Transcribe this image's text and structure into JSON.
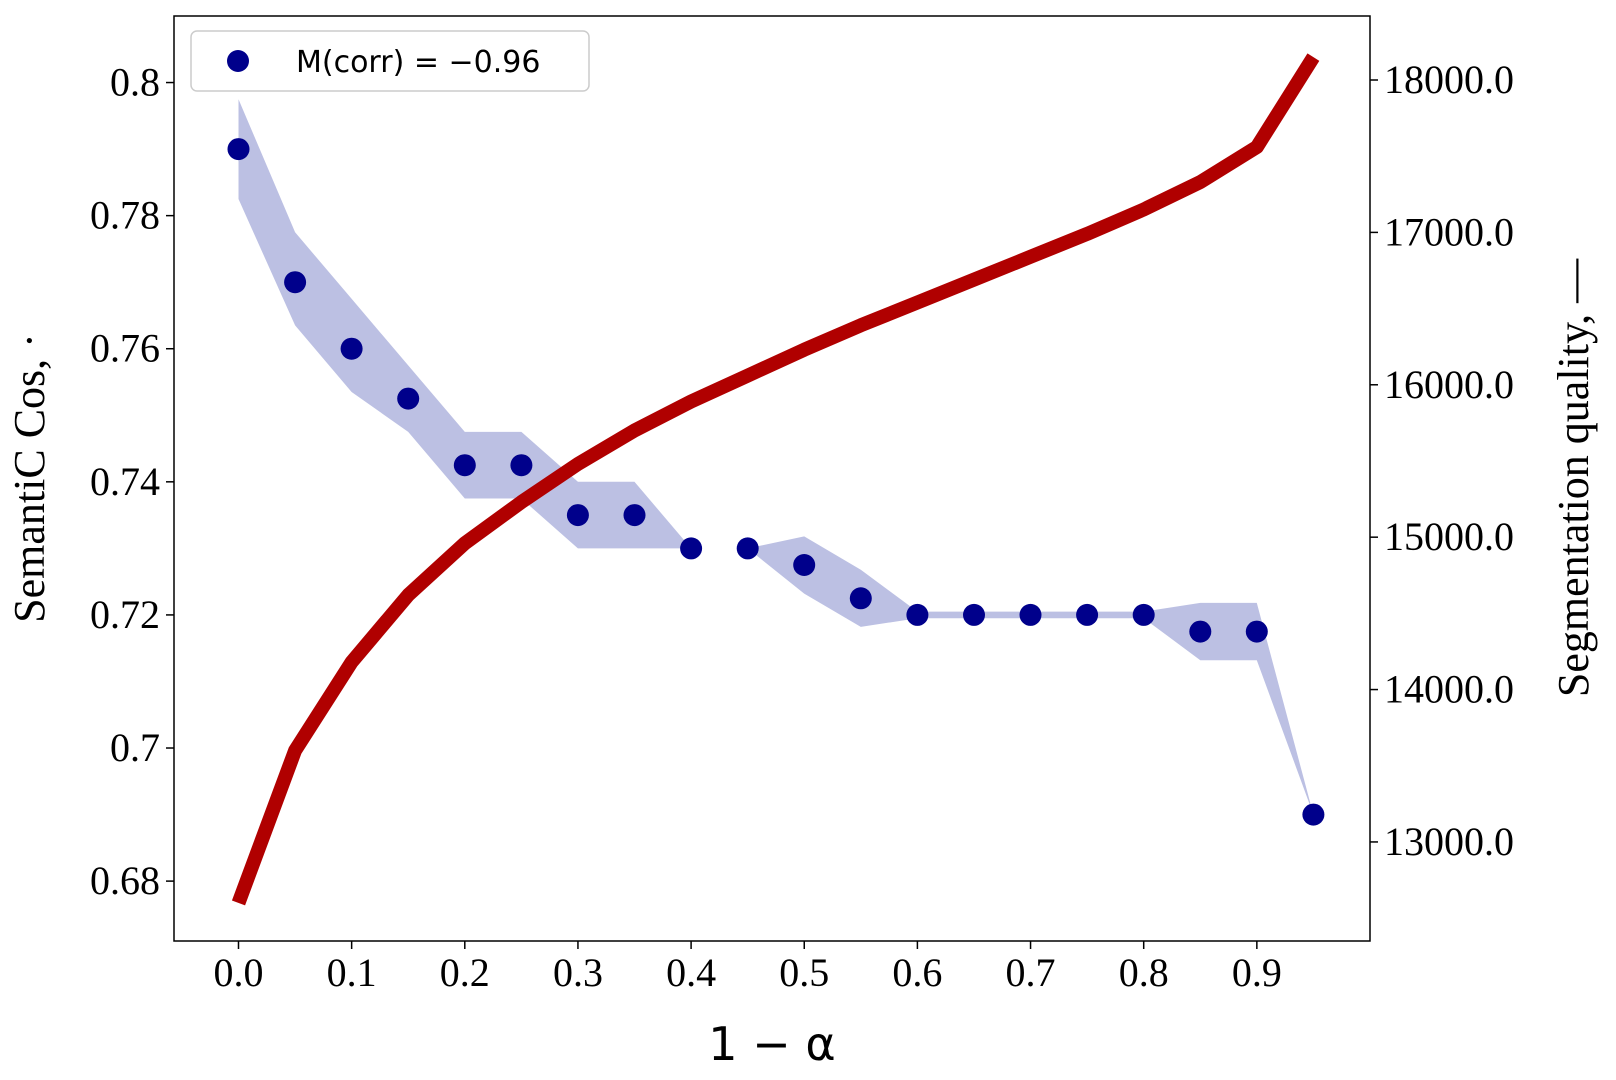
{
  "chart_data": {
    "type": "scatter",
    "xlabel": "1 − α",
    "ylabel_left": "SemantiC Cos, ·",
    "ylabel_right": "Segmentation quality, —",
    "x_ticks": [
      "0.0",
      "0.1",
      "0.2",
      "0.3",
      "0.4",
      "0.5",
      "0.6",
      "0.7",
      "0.8",
      "0.9"
    ],
    "y_left_ticks": [
      "0.68",
      "0.7",
      "0.72",
      "0.74",
      "0.76",
      "0.78",
      "0.8"
    ],
    "y_right_ticks": [
      "13000.0",
      "14000.0",
      "15000.0",
      "16000.0",
      "17000.0",
      "18000.0"
    ],
    "xlim": [
      -0.057,
      1.0
    ],
    "ylim_left": [
      0.671,
      0.81
    ],
    "ylim_right": [
      12350,
      18420
    ],
    "legend": {
      "label": "M(corr) = −0.96",
      "position": "top-left"
    },
    "colors": {
      "points": "#00008b",
      "band": "#bcc0e3",
      "line": "#b00000"
    },
    "series": [
      {
        "name": "M(corr) = −0.96",
        "axis": "left",
        "kind": "scatter",
        "x": [
          0.0,
          0.05,
          0.1,
          0.15,
          0.2,
          0.25,
          0.3,
          0.35,
          0.4,
          0.45,
          0.5,
          0.55,
          0.6,
          0.65,
          0.7,
          0.75,
          0.8,
          0.85,
          0.9,
          0.95
        ],
        "y": [
          0.79,
          0.77,
          0.76,
          0.7525,
          0.7425,
          0.7425,
          0.735,
          0.735,
          0.73,
          0.73,
          0.7275,
          0.7225,
          0.72,
          0.72,
          0.72,
          0.72,
          0.72,
          0.7175,
          0.7175,
          0.69
        ],
        "band_upper": [
          0.7975,
          0.7775,
          0.7675,
          0.7575,
          0.7475,
          0.7475,
          0.74,
          0.74,
          0.73,
          0.73,
          0.7318,
          0.7268,
          0.7205,
          0.7205,
          0.7205,
          0.7205,
          0.7205,
          0.7218,
          0.7218,
          0.69
        ],
        "band_lower": [
          0.7825,
          0.7635,
          0.7535,
          0.7475,
          0.7375,
          0.7375,
          0.73,
          0.73,
          0.73,
          0.73,
          0.7232,
          0.7182,
          0.7195,
          0.7195,
          0.7195,
          0.7195,
          0.7195,
          0.7132,
          0.7132,
          0.69
        ]
      },
      {
        "axis": "right",
        "kind": "line",
        "x": [
          0.0,
          0.05,
          0.1,
          0.15,
          0.2,
          0.25,
          0.3,
          0.35,
          0.4,
          0.45,
          0.5,
          0.55,
          0.6,
          0.65,
          0.7,
          0.75,
          0.8,
          0.85,
          0.9,
          0.95
        ],
        "y": [
          12600,
          13600,
          14180,
          14620,
          14960,
          15230,
          15480,
          15700,
          15890,
          16060,
          16230,
          16390,
          16540,
          16690,
          16840,
          16990,
          17150,
          17330,
          17560,
          18150
        ]
      }
    ]
  }
}
